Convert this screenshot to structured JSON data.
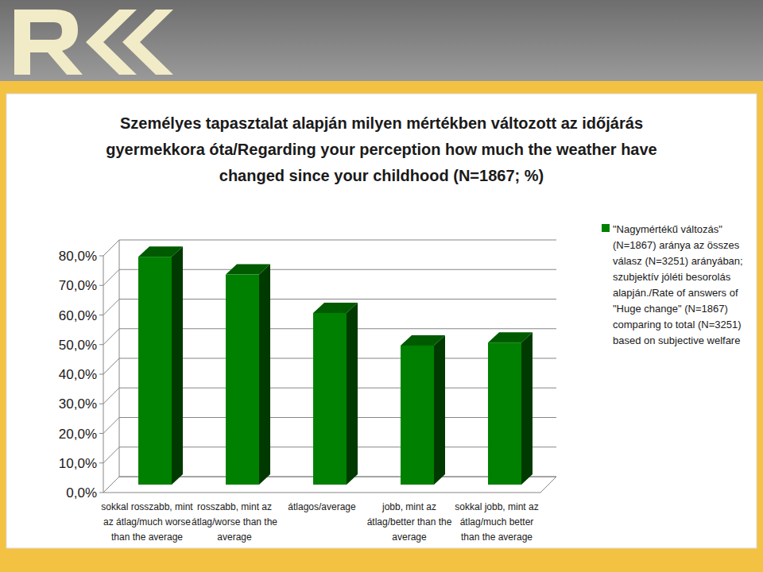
{
  "chart_data": {
    "type": "bar",
    "title": "Személyes tapasztalat alapján milyen mértékben változott az időjárás gyermekkora óta/Regarding your perception how much the weather have changed since your childhood (N=1867; %)",
    "categories": [
      "sokkal rosszabb, mint az átlag/much worse than the average",
      "rosszabb, mint az átlag/worse than the average",
      "átlagos/average",
      "jobb, mint az átlag/better than the average",
      "sokkal jobb, mint az átlag/much better than the average"
    ],
    "series": [
      {
        "name": "\"Nagymértékű változás\" (N=1867) aránya az összes válasz (N=3251) arányában; szubjektív jóléti besorolás alapján./Rate of answers of \"Huge change\" (N=1867) comparing to total (N=3251) based on subjective welfare",
        "color": "#008000",
        "values": [
          77,
          71,
          58,
          47,
          48
        ]
      }
    ],
    "ylim": [
      0,
      80
    ],
    "yticks": [
      {
        "value": 0,
        "label": "0,0%"
      },
      {
        "value": 10,
        "label": "10,0%"
      },
      {
        "value": 20,
        "label": "20,0%"
      },
      {
        "value": 30,
        "label": "30,0%"
      },
      {
        "value": 40,
        "label": "40,0%"
      },
      {
        "value": 50,
        "label": "50,0%"
      },
      {
        "value": 60,
        "label": "60,0%"
      },
      {
        "value": 70,
        "label": "70,0%"
      },
      {
        "value": 80,
        "label": "80,0%"
      }
    ],
    "grid": true,
    "legend": "right"
  }
}
